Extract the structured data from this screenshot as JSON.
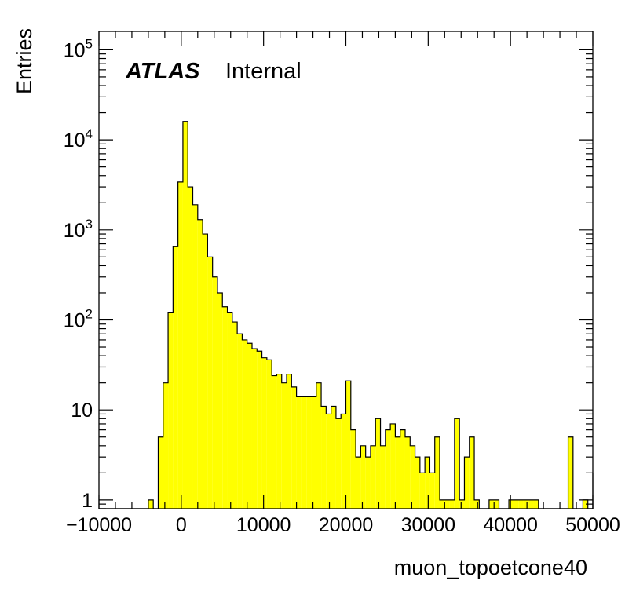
{
  "chart_data": {
    "type": "bar",
    "style": "histogram",
    "xlabel": "muon_topoetcone40",
    "ylabel": "Entries",
    "x_scale": "linear",
    "y_scale": "log",
    "xlim": [
      -10000,
      50000
    ],
    "ylim": [
      0.8,
      160000
    ],
    "bin_width": 600,
    "bin_start": -10000,
    "fill_color": "#ffff00",
    "line_color": "#000000",
    "grid": false,
    "x_ticks": [
      "−10000",
      "0",
      "10000",
      "20000",
      "30000",
      "40000",
      "50000"
    ],
    "x_tick_values": [
      -10000,
      0,
      10000,
      20000,
      30000,
      40000,
      50000
    ],
    "y_ticks": [
      {
        "value": 1,
        "base": "1",
        "exp": ""
      },
      {
        "value": 10,
        "base": "10",
        "exp": ""
      },
      {
        "value": 100,
        "base": "10",
        "exp": "2"
      },
      {
        "value": 1000,
        "base": "10",
        "exp": "3"
      },
      {
        "value": 10000,
        "base": "10",
        "exp": "4"
      },
      {
        "value": 100000,
        "base": "10",
        "exp": "5"
      }
    ],
    "label_atlas": "ATLAS",
    "label_status": "Internal",
    "values": [
      0,
      0,
      0,
      0,
      0,
      0,
      0,
      0,
      0,
      0,
      1,
      0,
      5,
      20,
      120,
      650,
      3400,
      16000,
      3000,
      1900,
      1300,
      900,
      500,
      300,
      200,
      140,
      120,
      95,
      70,
      60,
      55,
      48,
      45,
      38,
      36,
      24,
      25,
      20,
      25,
      18,
      14,
      14,
      14,
      14,
      20,
      11,
      9,
      11,
      8,
      9,
      21,
      6,
      3,
      4,
      3,
      4,
      8,
      4,
      6,
      7,
      5,
      6,
      5,
      4,
      3,
      2,
      3,
      2,
      5,
      1,
      1,
      1,
      8,
      1,
      3,
      5,
      1,
      0,
      0,
      1,
      1,
      0,
      0,
      1,
      1,
      1,
      1,
      1,
      1,
      0,
      0,
      0,
      0,
      0,
      0,
      5,
      0,
      0,
      1,
      0,
      2
    ]
  }
}
